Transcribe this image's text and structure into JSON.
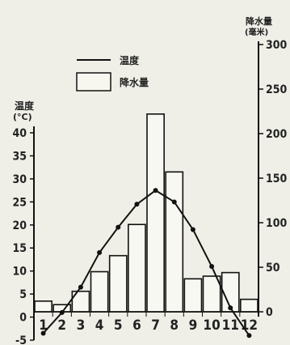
{
  "chart_data": {
    "type": "bar+line",
    "categories": [
      "1",
      "2",
      "3",
      "4",
      "5",
      "6",
      "7",
      "8",
      "9",
      "10",
      "11",
      "12"
    ],
    "series": [
      {
        "name": "降水量",
        "axis": "right",
        "kind": "bar",
        "values": [
          12,
          8,
          23,
          45,
          63,
          98,
          222,
          157,
          37,
          40,
          44,
          14
        ]
      },
      {
        "name": "温度",
        "axis": "left",
        "kind": "line",
        "values": [
          -3.5,
          1,
          6.5,
          14,
          19.5,
          24.5,
          27.5,
          25,
          19,
          11,
          2,
          -4
        ]
      }
    ],
    "left_axis": {
      "label_line1": "温度",
      "label_line2": "(°C)",
      "ticks": [
        "40",
        "35",
        "30",
        "25",
        "20",
        "15",
        "10",
        "5",
        "0",
        "-5"
      ],
      "ylim": [
        -5,
        40
      ]
    },
    "right_axis": {
      "label_line1": "降水量",
      "label_line2": "(毫米)",
      "ticks": [
        "300",
        "250",
        "200",
        "150",
        "100",
        "50",
        "0"
      ],
      "ylim": [
        0,
        300
      ]
    },
    "legend": {
      "placement": "top-left",
      "line_label": "温度",
      "bar_label": "降水量"
    },
    "grid": false
  }
}
